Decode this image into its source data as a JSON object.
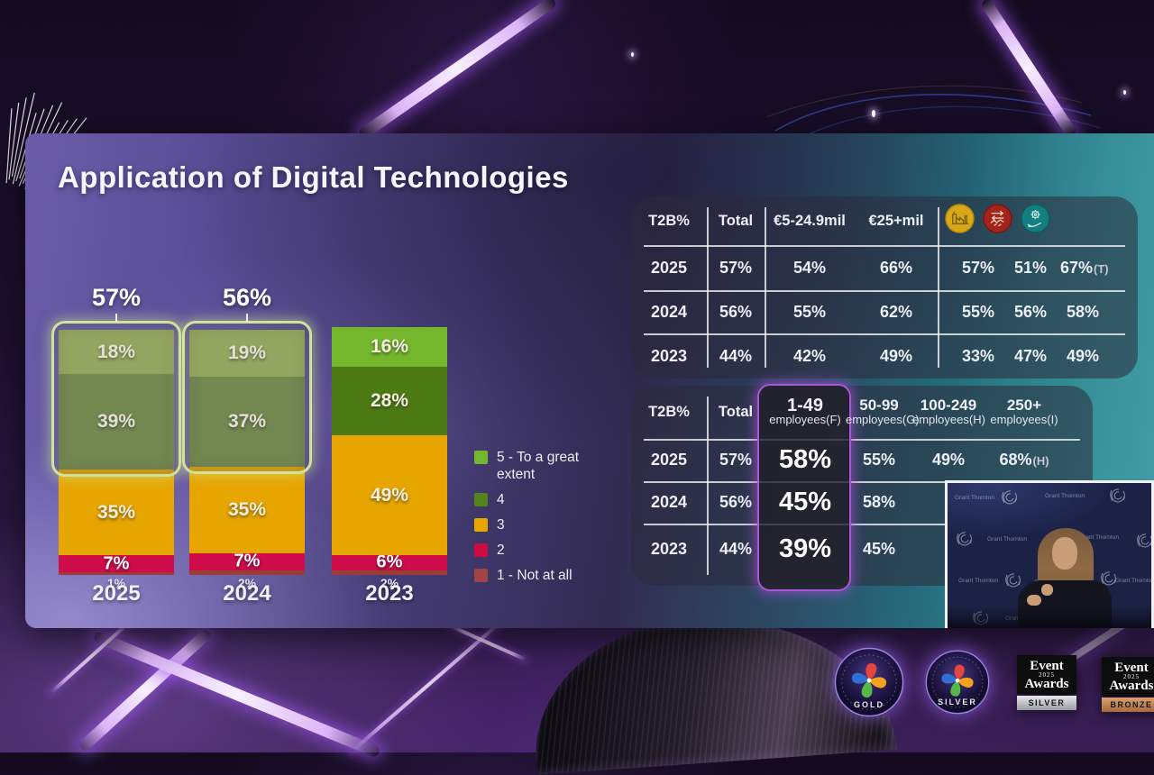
{
  "slide": {
    "title": "Application of Digital Technologies",
    "legend": [
      {
        "label": "5 - To a great extent",
        "color": "#74b62c"
      },
      {
        "label": "4",
        "color": "#55831c"
      },
      {
        "label": "3",
        "color": "#e7a500"
      },
      {
        "label": "2",
        "color": "#cb0c44"
      },
      {
        "label": "1 - Not at all",
        "color": "#a04444"
      }
    ],
    "top_table": {
      "headers": [
        "T2B%",
        "Total",
        "€5-24.9mil",
        "€25+mil"
      ],
      "header_icons": [
        "factory-icon",
        "handshake-icon",
        "gear-hand-icon"
      ],
      "rows": [
        {
          "year": "2025",
          "cells": [
            {
              "t": "57%"
            },
            {
              "t": "54%"
            },
            {
              "t": "66%"
            },
            {
              "t": "57%"
            },
            {
              "t": "51%"
            },
            {
              "t": "67%",
              "s": "(T)"
            }
          ]
        },
        {
          "year": "2024",
          "cells": [
            {
              "t": "56%"
            },
            {
              "t": "55%"
            },
            {
              "t": "62%"
            },
            {
              "t": "55%"
            },
            {
              "t": "56%"
            },
            {
              "t": "58%"
            }
          ]
        },
        {
          "year": "2023",
          "cells": [
            {
              "t": "44%"
            },
            {
              "t": "42%"
            },
            {
              "t": "49%"
            },
            {
              "t": "33%"
            },
            {
              "t": "47%"
            },
            {
              "t": "49%"
            }
          ]
        }
      ]
    },
    "bottom_table": {
      "headers": [
        "T2B%",
        "Total"
      ],
      "size_headers": [
        {
          "line1": "1-49",
          "line2": "employees(F)",
          "highlight": true
        },
        {
          "line1": "50-99",
          "line2": "employees(G)",
          "highlight": false
        },
        {
          "line1": "100-249",
          "line2": "employees(H)",
          "highlight": false
        },
        {
          "line1": "250+",
          "line2": "employees(I)",
          "highlight": false
        }
      ],
      "rows": [
        {
          "year": "2025",
          "total": "57%",
          "sizes": [
            {
              "t": "58%"
            },
            {
              "t": "55%"
            },
            {
              "t": "49%"
            },
            {
              "t": "68%",
              "s": "(H)"
            }
          ]
        },
        {
          "year": "2024",
          "total": "56%",
          "sizes": [
            {
              "t": "45%"
            },
            {
              "t": "58%"
            },
            {
              "t": ""
            },
            {
              "t": ""
            }
          ]
        },
        {
          "year": "2023",
          "total": "44%",
          "sizes": [
            {
              "t": "39%"
            },
            {
              "t": "45%"
            },
            {
              "t": ""
            },
            {
              "t": ""
            }
          ]
        }
      ]
    },
    "video": {
      "brand": "Grant Thornton"
    }
  },
  "chart_data": {
    "type": "bar",
    "stacked": true,
    "title": "Application of Digital Technologies",
    "unit": "percent",
    "categories": [
      "2025",
      "2024",
      "2023"
    ],
    "series": [
      {
        "name": "1 - Not at all",
        "color": "#9a3c38",
        "values": [
          1,
          2,
          2
        ]
      },
      {
        "name": "2",
        "color": "#cd0c49",
        "values": [
          7,
          7,
          6
        ]
      },
      {
        "name": "3",
        "color": "#e7a500",
        "values": [
          35,
          35,
          49
        ]
      },
      {
        "name": "4",
        "color": "#4c7a13",
        "muted_color": "#6d8544",
        "values": [
          39,
          37,
          28
        ]
      },
      {
        "name": "5 - To a great extent",
        "color": "#74b62c",
        "muted_color": "#93aa55",
        "values": [
          18,
          19,
          16
        ]
      }
    ],
    "t2b_totals": [
      "57%",
      "56%",
      null
    ],
    "highlighted_bars": [
      true,
      true,
      false
    ],
    "legend_position": "right",
    "ylim": [
      0,
      100
    ],
    "grid": false
  },
  "badges": {
    "gold": {
      "tier": "GOLD"
    },
    "silver": {
      "tier": "SILVER"
    },
    "event_silver": {
      "word1": "Event",
      "year": "2025",
      "word2": "Awards",
      "tier": "SILVER"
    },
    "event_bronze": {
      "word1": "Event",
      "year": "2025",
      "word2": "Awards",
      "tier": "BRONZE"
    }
  }
}
